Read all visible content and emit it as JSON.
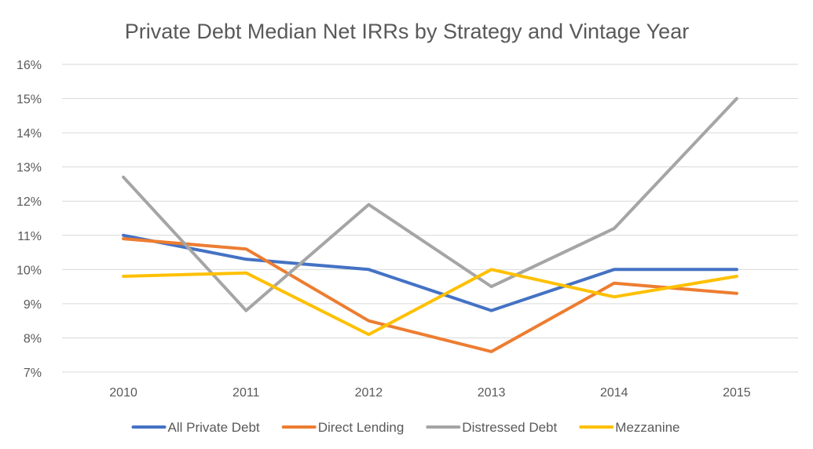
{
  "chart_data": {
    "type": "line",
    "title": "Private Debt Median Net IRRs by Strategy and Vintage Year",
    "xlabel": "",
    "ylabel": "",
    "categories": [
      "2010",
      "2011",
      "2012",
      "2013",
      "2014",
      "2015"
    ],
    "ylim": [
      7,
      16
    ],
    "yticks": [
      7,
      8,
      9,
      10,
      11,
      12,
      13,
      14,
      15,
      16
    ],
    "ytick_labels": [
      "7%",
      "8%",
      "9%",
      "10%",
      "11%",
      "12%",
      "13%",
      "14%",
      "15%",
      "16%"
    ],
    "grid": true,
    "legend_position": "bottom",
    "series": [
      {
        "name": "All Private Debt",
        "color": "#4472c4",
        "values": [
          11.0,
          10.3,
          10.0,
          8.8,
          10.0,
          10.0
        ]
      },
      {
        "name": "Direct Lending",
        "color": "#ed7d31",
        "values": [
          10.9,
          10.6,
          8.5,
          7.6,
          9.6,
          9.3
        ]
      },
      {
        "name": "Distressed Debt",
        "color": "#a5a5a5",
        "values": [
          12.7,
          8.8,
          11.9,
          9.5,
          11.2,
          15.0
        ]
      },
      {
        "name": "Mezzanine",
        "color": "#ffc000",
        "values": [
          9.8,
          9.9,
          8.1,
          10.0,
          9.2,
          9.8
        ]
      }
    ]
  }
}
